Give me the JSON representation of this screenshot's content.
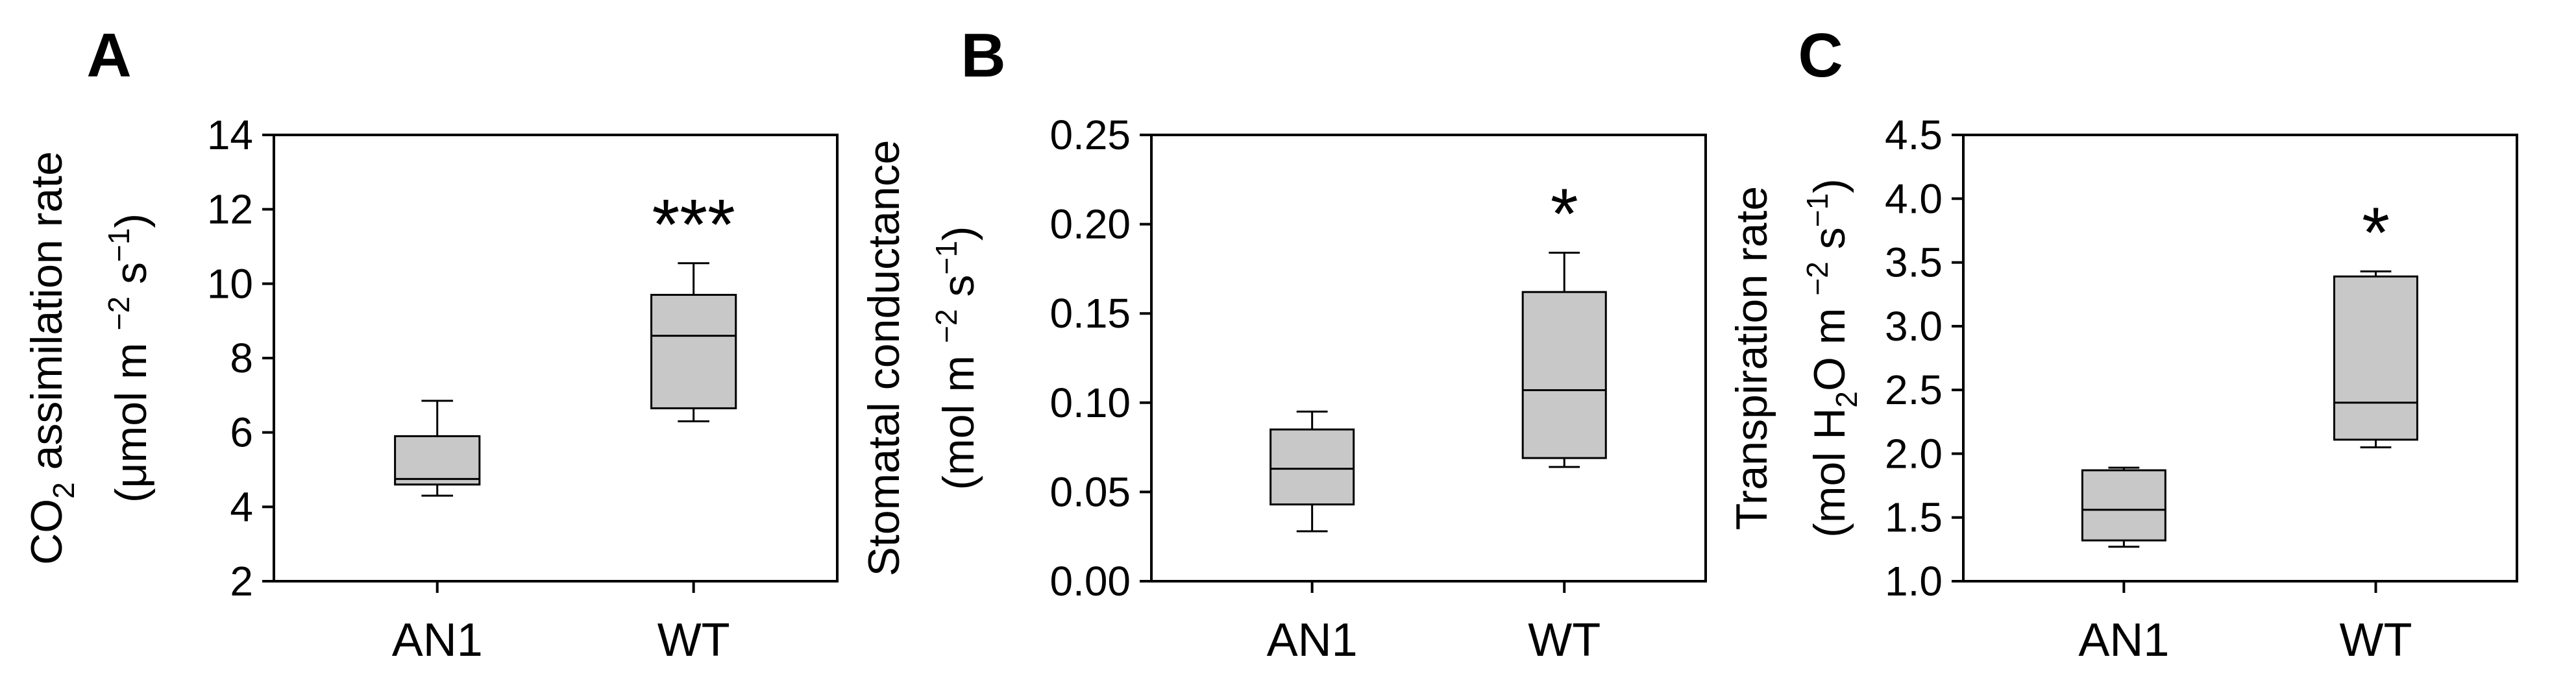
{
  "chart_data": [
    {
      "type": "boxplot",
      "panel": "A",
      "ylabel_line1": "CO2 assimilation rate",
      "ylabel_line2": "(μmol m−2 s−1)",
      "ylim": [
        2,
        14
      ],
      "yticks": [
        2,
        4,
        6,
        8,
        10,
        12,
        14
      ],
      "ytick_labels": [
        "2",
        "4",
        "6",
        "8",
        "10",
        "12",
        "14"
      ],
      "categories": [
        "AN1",
        "WT"
      ],
      "boxes": [
        {
          "category": "AN1",
          "whisker_low": 4.3,
          "q1": 4.6,
          "median": 4.75,
          "q3": 5.9,
          "whisker_high": 6.85,
          "significance": ""
        },
        {
          "category": "WT",
          "whisker_low": 6.3,
          "q1": 6.65,
          "median": 8.6,
          "q3": 9.7,
          "whisker_high": 10.55,
          "significance": "***"
        }
      ]
    },
    {
      "type": "boxplot",
      "panel": "B",
      "ylabel_line1": "Stomatal conductance",
      "ylabel_line2": "(mol m−2 s−1)",
      "ylim": [
        0,
        0.25
      ],
      "yticks": [
        0,
        0.05,
        0.1,
        0.15,
        0.2,
        0.25
      ],
      "ytick_labels": [
        "0.00",
        "0.05",
        "0.10",
        "0.15",
        "0.20",
        "0.25"
      ],
      "categories": [
        "AN1",
        "WT"
      ],
      "boxes": [
        {
          "category": "AN1",
          "whisker_low": 0.028,
          "q1": 0.043,
          "median": 0.063,
          "q3": 0.085,
          "whisker_high": 0.095,
          "significance": ""
        },
        {
          "category": "WT",
          "whisker_low": 0.064,
          "q1": 0.069,
          "median": 0.107,
          "q3": 0.162,
          "whisker_high": 0.184,
          "significance": "*"
        }
      ]
    },
    {
      "type": "boxplot",
      "panel": "C",
      "ylabel_line1": "Transpiration rate",
      "ylabel_line2": "(mol H2O m−2 s−1)",
      "ylim": [
        1.0,
        4.5
      ],
      "yticks": [
        1.0,
        1.5,
        2.0,
        2.5,
        3.0,
        3.5,
        4.0,
        4.5
      ],
      "ytick_labels": [
        "1.0",
        "1.5",
        "2.0",
        "2.5",
        "3.0",
        "3.5",
        "4.0",
        "4.5"
      ],
      "categories": [
        "AN1",
        "WT"
      ],
      "boxes": [
        {
          "category": "AN1",
          "whisker_low": 1.27,
          "q1": 1.32,
          "median": 1.56,
          "q3": 1.87,
          "whisker_high": 1.89,
          "significance": ""
        },
        {
          "category": "WT",
          "whisker_low": 2.05,
          "q1": 2.11,
          "median": 2.4,
          "q3": 3.39,
          "whisker_high": 3.43,
          "significance": "*"
        }
      ]
    }
  ],
  "style": {
    "box_fill": "#c8c8c8",
    "line_color": "#000000"
  }
}
